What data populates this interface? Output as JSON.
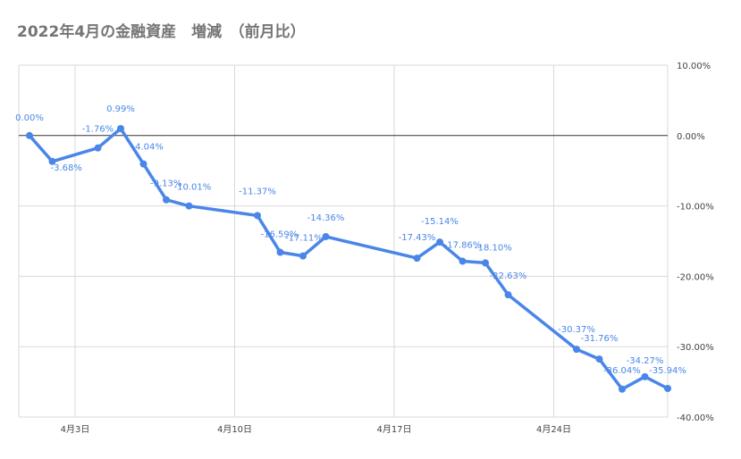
{
  "chart_data": {
    "type": "line",
    "title": "2022年4月の金融資産　増減　（前月比）",
    "xlabel": "",
    "ylabel": "",
    "ylim": [
      -40,
      10
    ],
    "y_ticks": [
      "10.00%",
      "0.00%",
      "-10.00%",
      "-20.00%",
      "-30.00%",
      "-40.00%"
    ],
    "y_tick_values": [
      10,
      0,
      -10,
      -20,
      -30,
      -40
    ],
    "x_ticks": [
      "4月3日",
      "4月10日",
      "4月17日",
      "4月24日"
    ],
    "x_tick_days": [
      3,
      10,
      17,
      24
    ],
    "grid": true,
    "legend": "none",
    "color": "#4a86e8",
    "series": [
      {
        "x": [
          "2022-04-01",
          "2022-04-02",
          "2022-04-04",
          "2022-04-05",
          "2022-04-06",
          "2022-04-07",
          "2022-04-08",
          "2022-04-11",
          "2022-04-12",
          "2022-04-13",
          "2022-04-14",
          "2022-04-18",
          "2022-04-19",
          "2022-04-20",
          "2022-04-21",
          "2022-04-22",
          "2022-04-25",
          "2022-04-26",
          "2022-04-27",
          "2022-04-28",
          "2022-04-29"
        ],
        "values": [
          0.0,
          -3.68,
          -1.76,
          0.99,
          -4.04,
          -9.13,
          -10.01,
          -11.37,
          -16.59,
          -17.11,
          -14.36,
          -17.43,
          -15.14,
          -17.86,
          -18.1,
          -22.63,
          -30.37,
          -31.76,
          -36.04,
          -34.27,
          -35.94
        ],
        "labels": [
          "0.00%",
          "-3.68%",
          "-1.76%",
          "0.99%",
          "-4.04%",
          "-9.13%",
          "-10.01%",
          "-11.37%",
          "-16.59%",
          "-17.11%",
          "-14.36%",
          "-17.43%",
          "-15.14%",
          "-17.86%",
          "-18.10%",
          "-22.63%",
          "-30.37%",
          "-31.76%",
          "-36.04%",
          "-34.27%",
          "-35.94%"
        ]
      }
    ]
  }
}
